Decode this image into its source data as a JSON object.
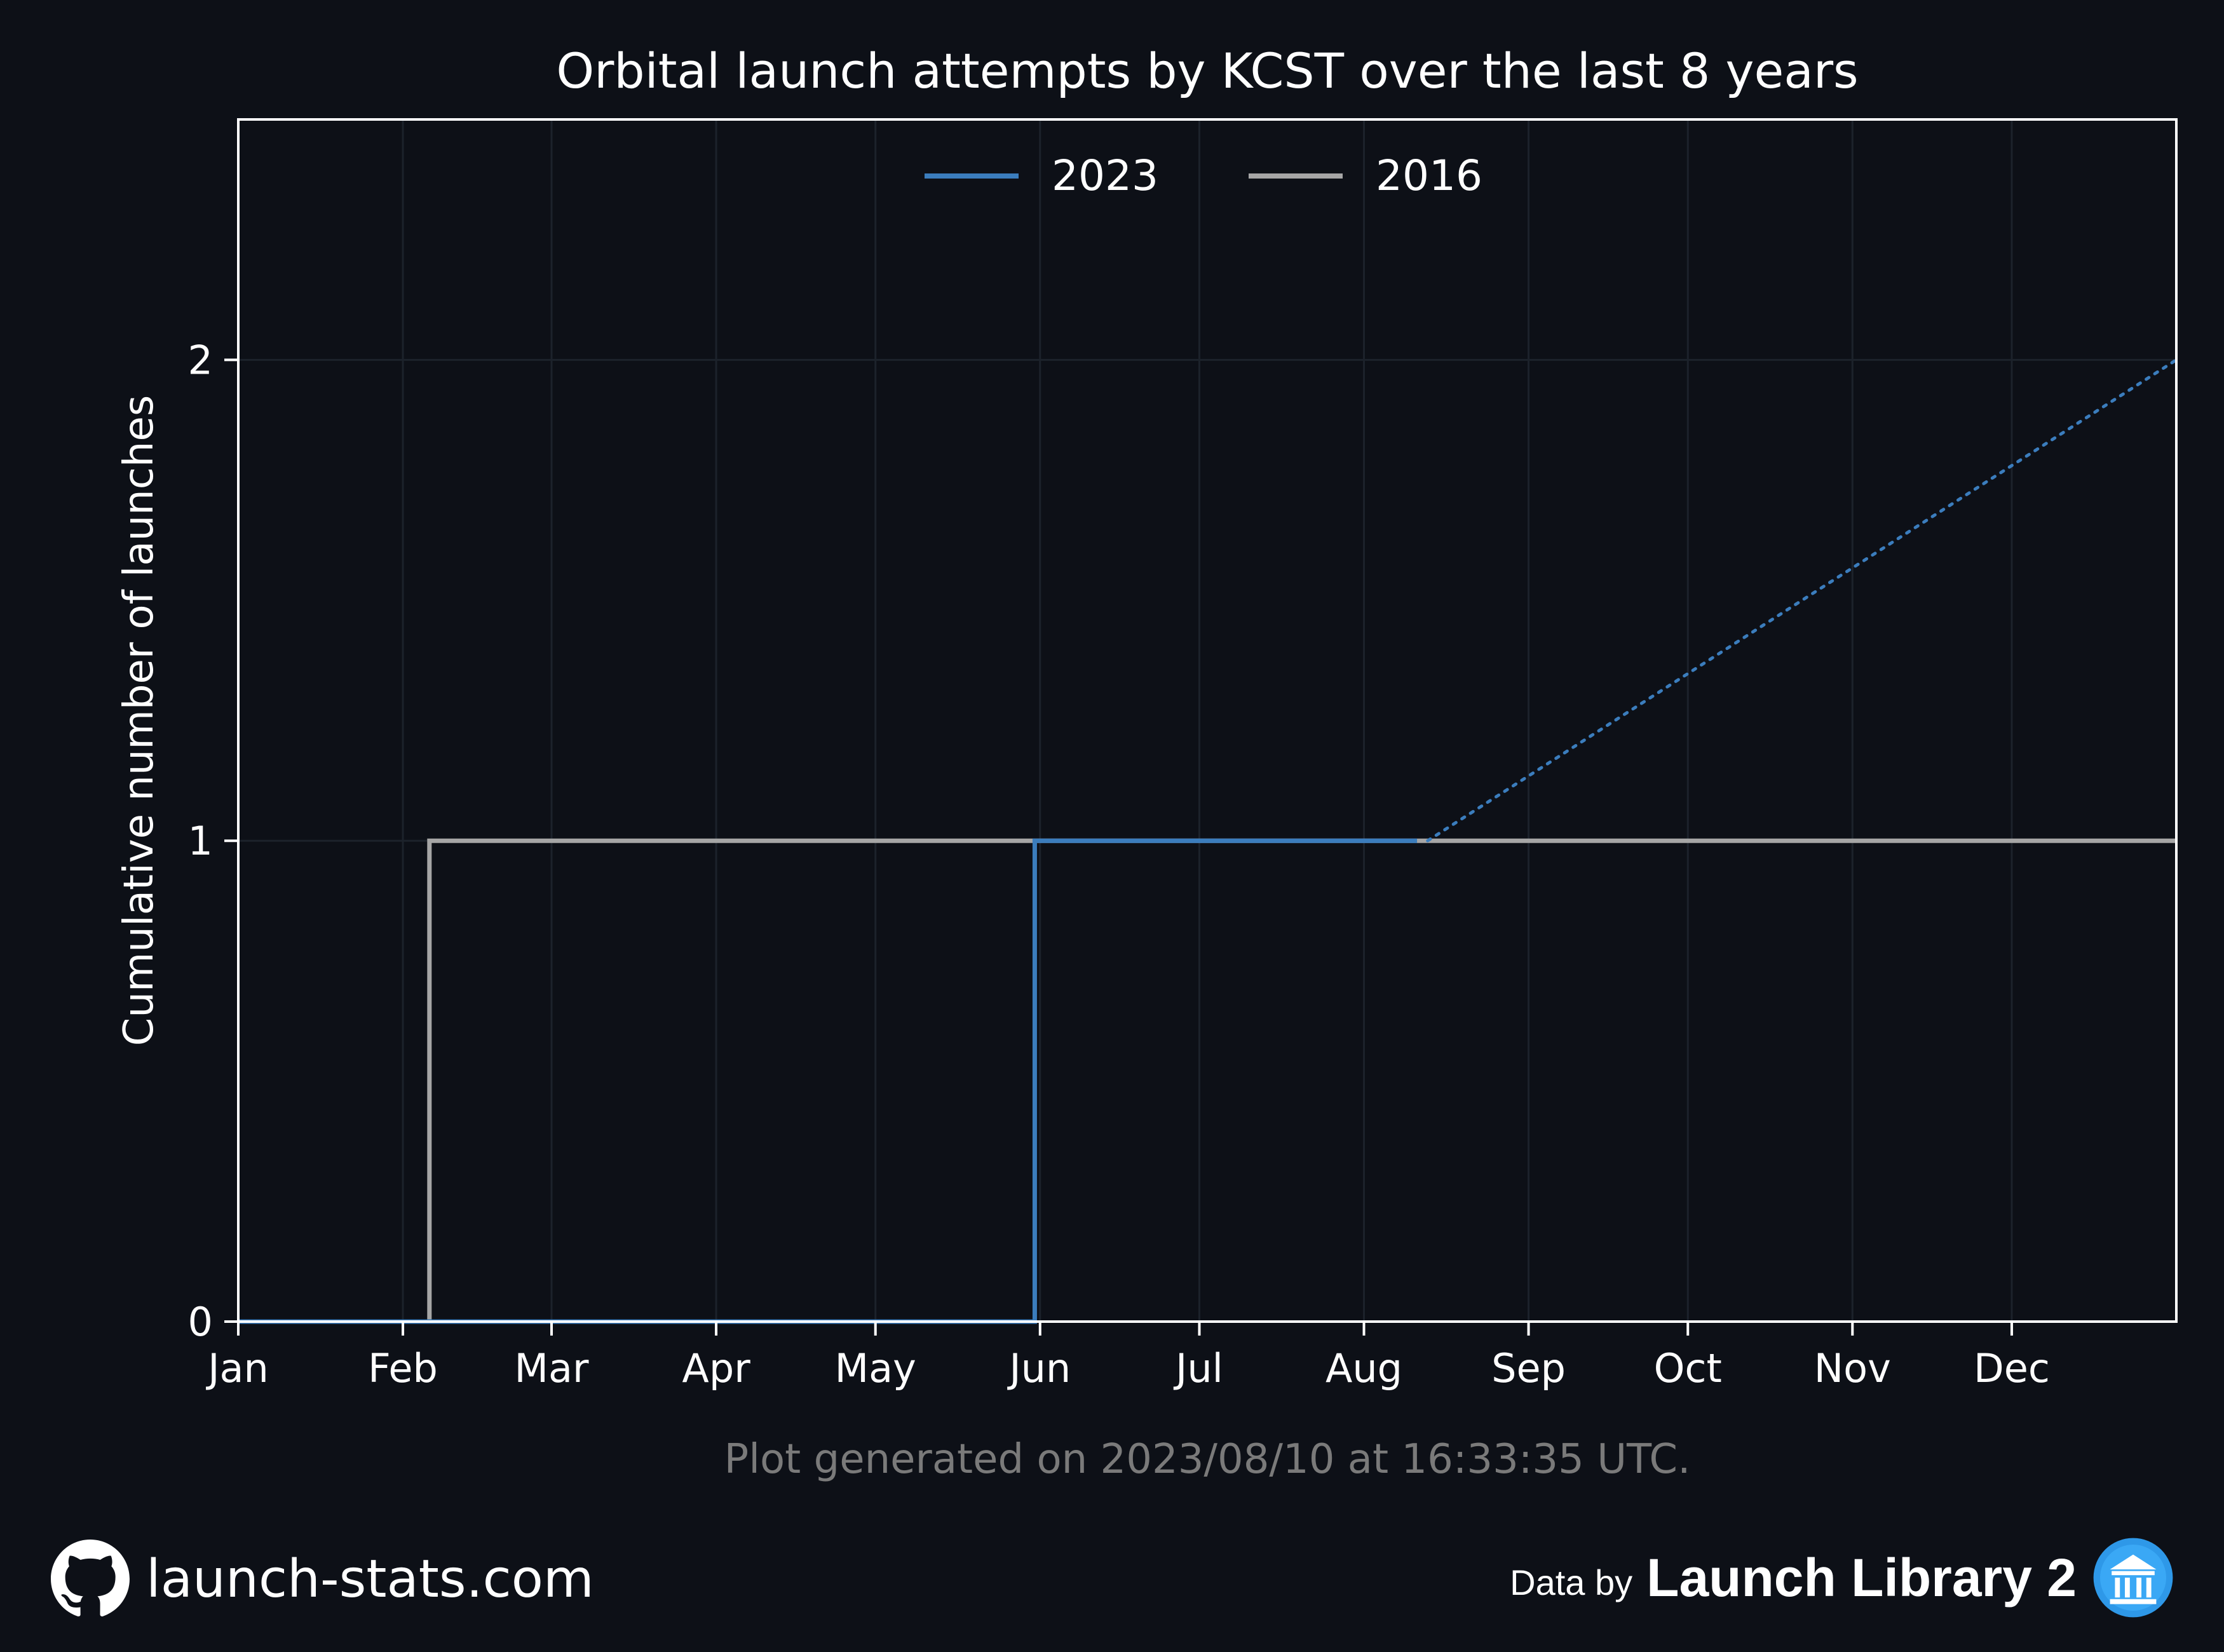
{
  "chart_data": {
    "type": "line",
    "title": "Orbital launch attempts by KCST over the last 8 years",
    "xlabel": "",
    "ylabel": "Cumulative number of launches",
    "x_ticks": [
      "Jan",
      "Feb",
      "Mar",
      "Apr",
      "May",
      "Jun",
      "Jul",
      "Aug",
      "Sep",
      "Oct",
      "Nov",
      "Dec"
    ],
    "y_ticks": [
      0,
      1,
      2
    ],
    "xlim": [
      0,
      365
    ],
    "ylim": [
      0,
      2.5
    ],
    "grid": true,
    "legend": "top-center",
    "series": [
      {
        "name": "2023",
        "color": "#3b7dbd",
        "style": "step",
        "points": [
          [
            0,
            0
          ],
          [
            150,
            0
          ],
          [
            150,
            1
          ],
          [
            222,
            1
          ]
        ],
        "projection": {
          "style": "dotted",
          "points": [
            [
              224,
              1
            ],
            [
              365,
              2
            ]
          ]
        }
      },
      {
        "name": "2016",
        "color": "#a6a6a6",
        "style": "step",
        "points": [
          [
            0,
            0
          ],
          [
            36,
            0
          ],
          [
            36,
            1
          ],
          [
            365,
            1
          ]
        ]
      }
    ]
  },
  "note": "Plot generated on 2023/08/10 at 16:33:35 UTC.",
  "footer": {
    "site": "launch-stats.com",
    "site_icon": "github-icon",
    "data_by": "Data by",
    "source": "Launch Library 2",
    "source_icon": "launch-library-logo"
  },
  "colors": {
    "background": "#0d1017",
    "axes": "#ffffff",
    "grid": "#1c222b",
    "note": "#7a7a7a",
    "logo": "#2e98e8"
  }
}
